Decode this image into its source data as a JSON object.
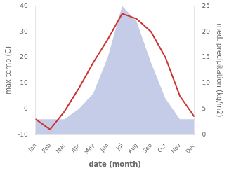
{
  "chart_data": {
    "type": "line",
    "categories": [
      "Jan",
      "Feb",
      "Mar",
      "Apr",
      "May",
      "Jun",
      "Jul",
      "Aug",
      "Sep",
      "Oct",
      "Nov",
      "Dec"
    ],
    "series": [
      {
        "type": "area",
        "color": "#c5cce8",
        "axis": "y2",
        "values": [
          3,
          3,
          3,
          5,
          8,
          15,
          25,
          22,
          14,
          7,
          3,
          3
        ]
      },
      {
        "type": "line",
        "color": "#cc3333",
        "values": [
          -4,
          -8,
          -1,
          8,
          18,
          27,
          37,
          35,
          30,
          20,
          5,
          -3
        ]
      }
    ],
    "xlabel": "date (month)",
    "ylabel": "max temp (C)",
    "y2label": "med. precipitation (kg/m2)",
    "ylim": [
      -10,
      40
    ],
    "yticks": [
      -10,
      0,
      10,
      20,
      30,
      40
    ],
    "y2lim": [
      0,
      25
    ],
    "y2ticks": [
      0,
      5,
      10,
      15,
      20,
      25
    ],
    "grid": false
  }
}
